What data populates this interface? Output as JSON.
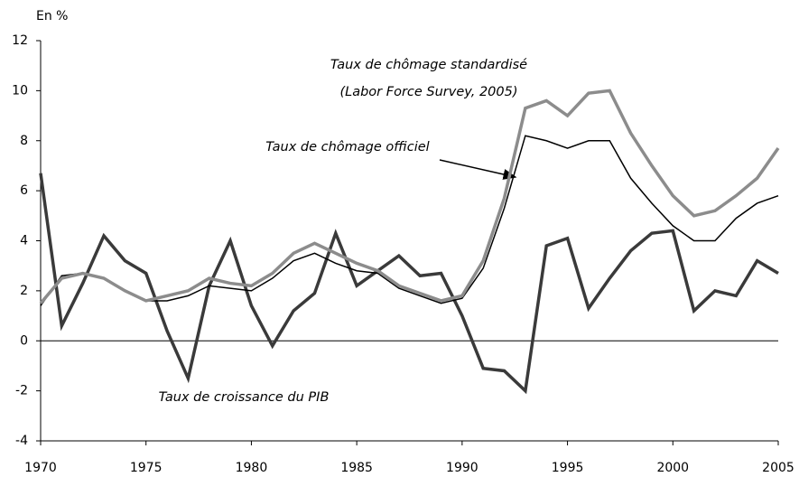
{
  "chart_data": {
    "type": "line",
    "y_label": "En %",
    "x": [
      1970,
      1971,
      1972,
      1973,
      1974,
      1975,
      1976,
      1977,
      1978,
      1979,
      1980,
      1981,
      1982,
      1983,
      1984,
      1985,
      1986,
      1987,
      1988,
      1989,
      1990,
      1991,
      1992,
      1993,
      1994,
      1995,
      1996,
      1997,
      1998,
      1999,
      2000,
      2001,
      2002,
      2003,
      2004,
      2005
    ],
    "series": [
      {
        "name": "Taux de croissance du PIB",
        "color": "#3a3a3a",
        "width": 3.5,
        "values": [
          6.7,
          0.6,
          2.3,
          4.2,
          3.2,
          2.7,
          0.4,
          -1.5,
          2.2,
          4.0,
          1.4,
          -0.2,
          1.2,
          1.9,
          4.3,
          2.2,
          2.8,
          3.4,
          2.6,
          2.7,
          1.0,
          -1.1,
          -1.2,
          -2.0,
          3.8,
          4.1,
          1.3,
          2.5,
          3.6,
          4.3,
          4.4,
          1.2,
          2.0,
          1.8,
          3.2,
          2.7
        ]
      },
      {
        "name": "Taux de chômage officiel",
        "color": "#000000",
        "width": 1.5,
        "values": [
          1.4,
          2.6,
          2.7,
          2.5,
          2.0,
          1.6,
          1.6,
          1.8,
          2.2,
          2.1,
          2.0,
          2.5,
          3.2,
          3.5,
          3.1,
          2.8,
          2.7,
          2.1,
          1.8,
          1.5,
          1.7,
          2.9,
          5.3,
          8.2,
          8.0,
          7.7,
          8.0,
          8.0,
          6.5,
          5.5,
          4.6,
          4.0,
          4.0,
          4.9,
          5.5,
          5.8
        ]
      },
      {
        "name": "Taux de chômage standardisé",
        "color": "#8c8c8c",
        "width": 3.5,
        "values": [
          1.5,
          2.5,
          2.7,
          2.5,
          2.0,
          1.6,
          1.8,
          2.0,
          2.5,
          2.3,
          2.2,
          2.7,
          3.5,
          3.9,
          3.5,
          3.1,
          2.8,
          2.2,
          1.9,
          1.6,
          1.8,
          3.2,
          5.7,
          9.3,
          9.6,
          9.0,
          9.9,
          10.0,
          8.3,
          7.0,
          5.8,
          5.0,
          5.2,
          5.8,
          6.5,
          7.7
        ]
      }
    ],
    "annotations": [
      "(Labor Force Survey, 2005)"
    ],
    "xlim": [
      1970,
      2005
    ],
    "xticks": [
      1970,
      1975,
      1980,
      1985,
      1990,
      1995,
      2000,
      2005
    ],
    "ylim": [
      -4,
      12
    ],
    "yticks": [
      -4,
      -2,
      0,
      2,
      4,
      6,
      8,
      10,
      12
    ]
  }
}
